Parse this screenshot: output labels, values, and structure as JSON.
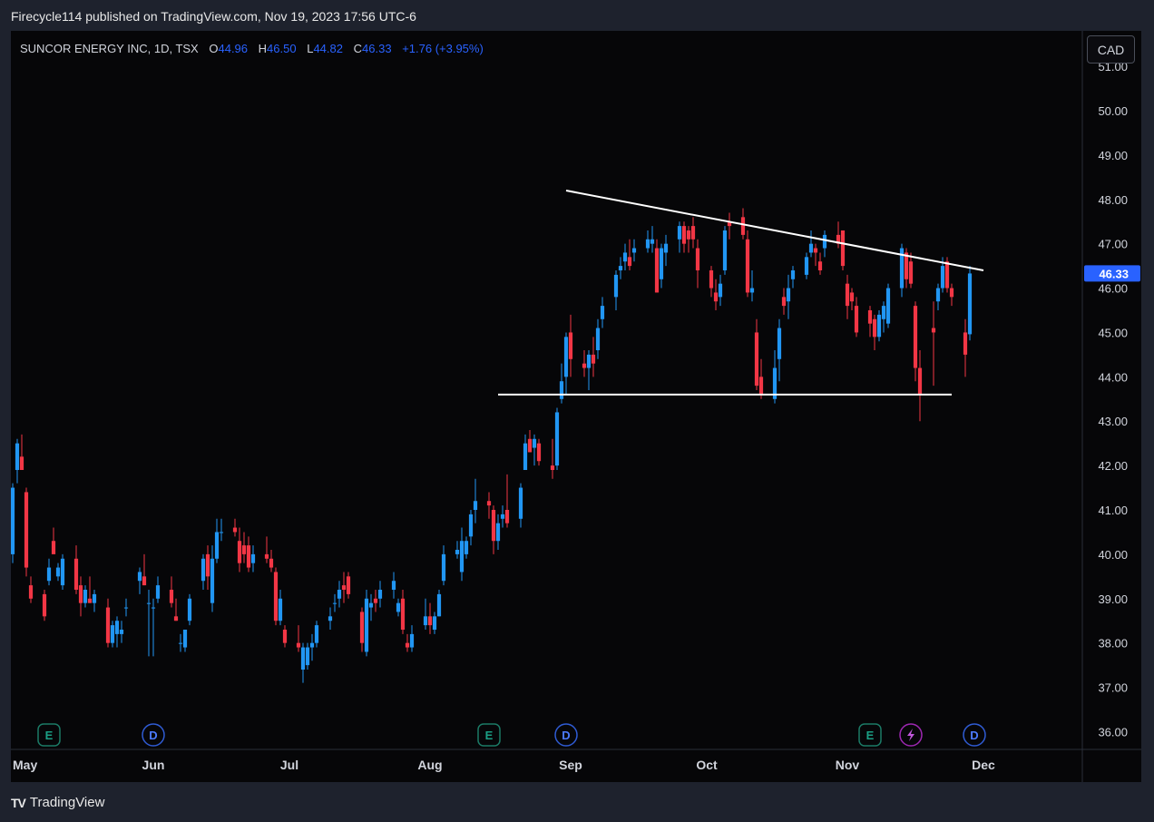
{
  "header": {
    "published_text": "Firecycle114 published on TradingView.com, Nov 19, 2023 17:56 UTC-6"
  },
  "legend": {
    "symbol": "SUNCOR ENERGY INC, 1D, TSX",
    "o_label": "O",
    "o_value": "44.96",
    "h_label": "H",
    "h_value": "46.50",
    "l_label": "L",
    "l_value": "44.82",
    "c_label": "C",
    "c_value": "46.33",
    "change": "+1.76 (+3.95%)"
  },
  "currency_button": "CAD",
  "footer": {
    "logo_text": "TV",
    "brand": "TradingView"
  },
  "colors": {
    "up": "#2196f3",
    "down": "#f23645",
    "background": "#060608",
    "price_tag": "#2962ff",
    "trendline": "#ffffff"
  },
  "chart_data": {
    "type": "candlestick",
    "symbol": "SUNCOR ENERGY INC",
    "interval": "1D",
    "exchange": "TSX",
    "ylim": [
      35.6,
      51.8
    ],
    "y_ticks": [
      "36.00",
      "37.00",
      "38.00",
      "39.00",
      "40.00",
      "41.00",
      "42.00",
      "43.00",
      "44.00",
      "45.00",
      "46.00",
      "47.00",
      "48.00",
      "49.00",
      "50.00",
      "51.00"
    ],
    "x_ticks": [
      "May",
      "Jun",
      "Jul",
      "Aug",
      "Sep",
      "Oct",
      "Nov",
      "Dec"
    ],
    "last_price_label": "46.33",
    "events": [
      {
        "type": "E",
        "date": "2023-05-09"
      },
      {
        "type": "D",
        "date": "2023-06-01"
      },
      {
        "type": "E",
        "date": "2023-08-14"
      },
      {
        "type": "D",
        "date": "2023-08-31"
      },
      {
        "type": "E",
        "date": "2023-11-06"
      },
      {
        "type": "split",
        "date": "2023-11-15"
      },
      {
        "type": "D",
        "date": "2023-11-29"
      }
    ],
    "trendlines": [
      {
        "name": "resistance",
        "from": {
          "date": "2023-08-31",
          "price": 48.2
        },
        "to": {
          "date": "2023-12-01",
          "price": 46.4
        }
      },
      {
        "name": "support",
        "from": {
          "date": "2023-08-16",
          "price": 43.6
        },
        "to": {
          "date": "2023-11-24",
          "price": 43.6
        }
      }
    ],
    "candles": [
      {
        "date": "2023-05-01",
        "o": 40.0,
        "h": 41.6,
        "l": 39.8,
        "c": 41.5
      },
      {
        "date": "2023-05-02",
        "o": 41.9,
        "h": 42.6,
        "l": 41.6,
        "c": 42.5
      },
      {
        "date": "2023-05-03",
        "o": 42.2,
        "h": 42.7,
        "l": 41.9,
        "c": 41.9
      },
      {
        "date": "2023-05-04",
        "o": 41.4,
        "h": 41.5,
        "l": 39.5,
        "c": 39.7
      },
      {
        "date": "2023-05-05",
        "o": 39.3,
        "h": 39.5,
        "l": 38.9,
        "c": 39.0
      },
      {
        "date": "2023-05-08",
        "o": 39.1,
        "h": 39.2,
        "l": 38.5,
        "c": 38.6
      },
      {
        "date": "2023-05-09",
        "o": 39.4,
        "h": 39.9,
        "l": 39.3,
        "c": 39.7
      },
      {
        "date": "2023-05-10",
        "o": 40.3,
        "h": 40.6,
        "l": 40.1,
        "c": 40.0
      },
      {
        "date": "2023-05-11",
        "o": 39.5,
        "h": 39.8,
        "l": 39.4,
        "c": 39.7
      },
      {
        "date": "2023-05-12",
        "o": 39.3,
        "h": 40.0,
        "l": 39.2,
        "c": 39.9
      },
      {
        "date": "2023-05-15",
        "o": 39.9,
        "h": 40.2,
        "l": 39.1,
        "c": 39.2
      },
      {
        "date": "2023-05-16",
        "o": 39.3,
        "h": 39.5,
        "l": 38.6,
        "c": 38.9
      },
      {
        "date": "2023-05-17",
        "o": 38.9,
        "h": 39.3,
        "l": 38.8,
        "c": 39.2
      },
      {
        "date": "2023-05-18",
        "o": 39.0,
        "h": 39.5,
        "l": 38.9,
        "c": 38.9
      },
      {
        "date": "2023-05-19",
        "o": 38.9,
        "h": 39.2,
        "l": 38.7,
        "c": 39.1
      },
      {
        "date": "2023-05-23",
        "o": 38.8,
        "h": 39.0,
        "l": 37.9,
        "c": 38.0
      },
      {
        "date": "2023-05-24",
        "o": 38.0,
        "h": 38.5,
        "l": 37.9,
        "c": 38.4
      },
      {
        "date": "2023-05-25",
        "o": 38.2,
        "h": 38.6,
        "l": 37.9,
        "c": 38.5
      },
      {
        "date": "2023-05-26",
        "o": 38.2,
        "h": 38.5,
        "l": 38.0,
        "c": 38.3
      },
      {
        "date": "2023-05-29",
        "o": 38.8,
        "h": 39.0,
        "l": 38.6,
        "c": 38.8
      },
      {
        "date": "2023-05-30",
        "o": 39.4,
        "h": 39.7,
        "l": 39.1,
        "c": 39.6
      },
      {
        "date": "2023-05-31",
        "o": 39.5,
        "h": 40.0,
        "l": 39.3,
        "c": 39.3
      },
      {
        "date": "2023-06-01",
        "o": 38.9,
        "h": 39.2,
        "l": 37.7,
        "c": 38.9
      },
      {
        "date": "2023-06-02",
        "o": 38.8,
        "h": 39.0,
        "l": 37.7,
        "c": 38.8
      },
      {
        "date": "2023-06-05",
        "o": 39.0,
        "h": 39.5,
        "l": 38.9,
        "c": 39.3
      },
      {
        "date": "2023-06-06",
        "o": 39.2,
        "h": 39.5,
        "l": 38.8,
        "c": 38.9
      },
      {
        "date": "2023-06-07",
        "o": 38.6,
        "h": 39.0,
        "l": 38.5,
        "c": 38.5
      },
      {
        "date": "2023-06-08",
        "o": 38.0,
        "h": 38.2,
        "l": 37.8,
        "c": 38.0
      },
      {
        "date": "2023-06-09",
        "o": 37.9,
        "h": 38.3,
        "l": 37.8,
        "c": 38.3
      },
      {
        "date": "2023-06-12",
        "o": 38.5,
        "h": 39.1,
        "l": 38.4,
        "c": 39.0
      },
      {
        "date": "2023-06-13",
        "o": 39.4,
        "h": 40.0,
        "l": 39.2,
        "c": 39.9
      },
      {
        "date": "2023-06-14",
        "o": 40.0,
        "h": 40.2,
        "l": 39.2,
        "c": 39.5
      },
      {
        "date": "2023-06-15",
        "o": 38.9,
        "h": 40.2,
        "l": 38.7,
        "c": 39.9
      },
      {
        "date": "2023-06-16",
        "o": 39.9,
        "h": 40.8,
        "l": 39.8,
        "c": 40.5
      },
      {
        "date": "2023-06-19",
        "o": 40.5,
        "h": 40.8,
        "l": 40.3,
        "c": 40.5
      },
      {
        "date": "2023-06-20",
        "o": 40.6,
        "h": 40.8,
        "l": 40.4,
        "c": 40.5
      },
      {
        "date": "2023-06-21",
        "o": 40.3,
        "h": 40.6,
        "l": 39.6,
        "c": 39.8
      },
      {
        "date": "2023-06-22",
        "o": 40.2,
        "h": 40.5,
        "l": 39.8,
        "c": 40.0
      },
      {
        "date": "2023-06-23",
        "o": 40.2,
        "h": 40.4,
        "l": 39.6,
        "c": 39.7
      },
      {
        "date": "2023-06-26",
        "o": 39.8,
        "h": 40.2,
        "l": 39.6,
        "c": 40.0
      },
      {
        "date": "2023-06-27",
        "o": 40.0,
        "h": 40.4,
        "l": 39.8,
        "c": 39.9
      },
      {
        "date": "2023-06-28",
        "o": 39.9,
        "h": 40.1,
        "l": 39.6,
        "c": 39.7
      },
      {
        "date": "2023-06-29",
        "o": 39.6,
        "h": 39.7,
        "l": 38.4,
        "c": 38.5
      },
      {
        "date": "2023-06-30",
        "o": 38.5,
        "h": 39.2,
        "l": 38.4,
        "c": 39.0
      },
      {
        "date": "2023-07-04",
        "o": 38.3,
        "h": 38.4,
        "l": 37.9,
        "c": 38.0
      },
      {
        "date": "2023-07-05",
        "o": 38.0,
        "h": 38.4,
        "l": 37.8,
        "c": 37.9
      },
      {
        "date": "2023-07-06",
        "o": 37.4,
        "h": 38.0,
        "l": 37.1,
        "c": 37.9
      },
      {
        "date": "2023-07-07",
        "o": 37.5,
        "h": 38.0,
        "l": 37.4,
        "c": 37.9
      },
      {
        "date": "2023-07-10",
        "o": 37.9,
        "h": 38.2,
        "l": 37.6,
        "c": 38.0
      },
      {
        "date": "2023-07-11",
        "o": 38.0,
        "h": 38.5,
        "l": 37.9,
        "c": 38.4
      },
      {
        "date": "2023-07-12",
        "o": 38.5,
        "h": 38.8,
        "l": 38.3,
        "c": 38.6
      },
      {
        "date": "2023-07-13",
        "o": 38.9,
        "h": 39.1,
        "l": 38.7,
        "c": 38.9
      },
      {
        "date": "2023-07-14",
        "o": 39.0,
        "h": 39.4,
        "l": 38.8,
        "c": 39.2
      },
      {
        "date": "2023-07-17",
        "o": 39.3,
        "h": 39.6,
        "l": 38.9,
        "c": 39.2
      },
      {
        "date": "2023-07-18",
        "o": 39.5,
        "h": 39.6,
        "l": 39.0,
        "c": 39.1
      },
      {
        "date": "2023-07-19",
        "o": 38.7,
        "h": 38.8,
        "l": 37.8,
        "c": 38.0
      },
      {
        "date": "2023-07-20",
        "o": 37.8,
        "h": 39.2,
        "l": 37.7,
        "c": 39.0
      },
      {
        "date": "2023-07-21",
        "o": 38.8,
        "h": 39.1,
        "l": 38.5,
        "c": 38.9
      },
      {
        "date": "2023-07-24",
        "o": 39.0,
        "h": 39.2,
        "l": 38.7,
        "c": 38.9
      },
      {
        "date": "2023-07-25",
        "o": 39.0,
        "h": 39.4,
        "l": 38.8,
        "c": 39.2
      },
      {
        "date": "2023-07-26",
        "o": 39.2,
        "h": 39.6,
        "l": 39.0,
        "c": 39.4
      },
      {
        "date": "2023-07-27",
        "o": 38.7,
        "h": 39.0,
        "l": 38.6,
        "c": 38.9
      },
      {
        "date": "2023-07-28",
        "o": 39.0,
        "h": 39.2,
        "l": 38.2,
        "c": 38.3
      },
      {
        "date": "2023-07-31",
        "o": 38.0,
        "h": 38.2,
        "l": 37.8,
        "c": 37.9
      },
      {
        "date": "2023-08-01",
        "o": 37.9,
        "h": 38.4,
        "l": 37.8,
        "c": 38.2
      },
      {
        "date": "2023-08-02",
        "o": 38.4,
        "h": 39.0,
        "l": 38.3,
        "c": 38.6
      },
      {
        "date": "2023-08-03",
        "o": 38.6,
        "h": 38.9,
        "l": 38.2,
        "c": 38.4
      },
      {
        "date": "2023-08-04",
        "o": 38.3,
        "h": 38.7,
        "l": 38.2,
        "c": 38.6
      },
      {
        "date": "2023-08-07",
        "o": 38.6,
        "h": 39.2,
        "l": 38.6,
        "c": 39.1
      },
      {
        "date": "2023-08-08",
        "o": 39.4,
        "h": 40.2,
        "l": 39.3,
        "c": 40.0
      },
      {
        "date": "2023-08-09",
        "o": 40.0,
        "h": 40.3,
        "l": 39.9,
        "c": 40.1
      },
      {
        "date": "2023-08-10",
        "o": 39.6,
        "h": 40.6,
        "l": 39.4,
        "c": 40.3
      },
      {
        "date": "2023-08-11",
        "o": 40.0,
        "h": 40.4,
        "l": 39.9,
        "c": 40.3
      },
      {
        "date": "2023-08-14",
        "o": 40.4,
        "h": 41.0,
        "l": 40.2,
        "c": 40.9
      },
      {
        "date": "2023-08-15",
        "o": 41.0,
        "h": 41.7,
        "l": 40.7,
        "c": 41.2
      },
      {
        "date": "2023-08-16",
        "o": 41.2,
        "h": 41.4,
        "l": 40.8,
        "c": 41.1
      },
      {
        "date": "2023-08-17",
        "o": 41.0,
        "h": 41.1,
        "l": 40.0,
        "c": 40.3
      },
      {
        "date": "2023-08-18",
        "o": 40.3,
        "h": 40.9,
        "l": 40.1,
        "c": 40.7
      },
      {
        "date": "2023-08-21",
        "o": 40.8,
        "h": 41.1,
        "l": 40.6,
        "c": 40.9
      },
      {
        "date": "2023-08-22",
        "o": 41.0,
        "h": 41.8,
        "l": 40.6,
        "c": 40.7
      },
      {
        "date": "2023-08-23",
        "o": 40.8,
        "h": 41.6,
        "l": 40.6,
        "c": 41.5
      },
      {
        "date": "2023-08-24",
        "o": 41.9,
        "h": 42.7,
        "l": 41.9,
        "c": 42.5
      },
      {
        "date": "2023-08-25",
        "o": 42.6,
        "h": 42.8,
        "l": 42.3,
        "c": 42.3
      },
      {
        "date": "2023-08-28",
        "o": 42.4,
        "h": 42.7,
        "l": 42.0,
        "c": 42.6
      },
      {
        "date": "2023-08-29",
        "o": 42.5,
        "h": 42.6,
        "l": 42.0,
        "c": 42.1
      },
      {
        "date": "2023-08-30",
        "o": 42.0,
        "h": 42.6,
        "l": 41.7,
        "c": 41.9
      },
      {
        "date": "2023-08-31",
        "o": 42.0,
        "h": 43.3,
        "l": 41.9,
        "c": 43.2
      }
    ]
  }
}
